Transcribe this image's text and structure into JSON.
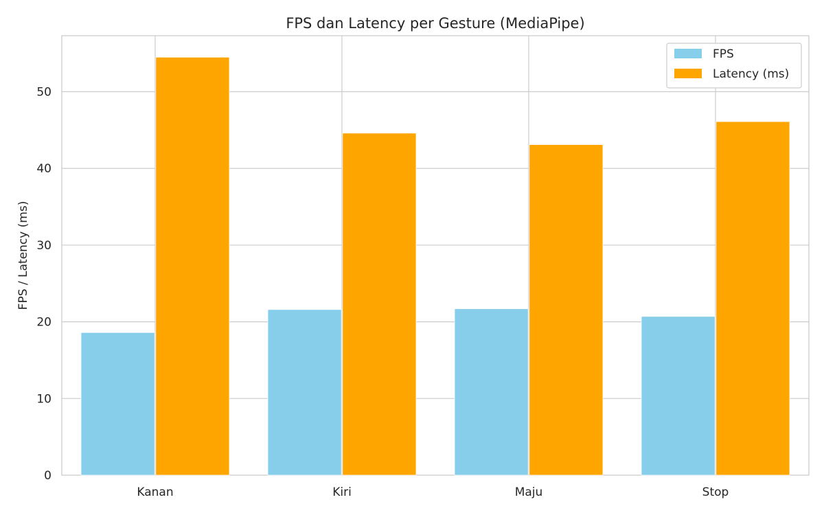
{
  "chart_data": {
    "type": "bar",
    "title": "FPS dan Latency per Gesture (MediaPipe)",
    "xlabel": "",
    "ylabel": "FPS / Latency (ms)",
    "categories": [
      "Kanan",
      "Kiri",
      "Maju",
      "Stop"
    ],
    "series": [
      {
        "name": "FPS",
        "values": [
          18.6,
          21.6,
          21.7,
          20.7
        ],
        "color": "#87ceeb"
      },
      {
        "name": "Latency (ms)",
        "values": [
          54.5,
          44.6,
          43.1,
          46.1
        ],
        "color": "#ffa500"
      }
    ],
    "ylim": [
      0,
      57.3
    ],
    "yticks": [
      0,
      10,
      20,
      30,
      40,
      50
    ],
    "grid": true,
    "legend_position": "top-right"
  }
}
